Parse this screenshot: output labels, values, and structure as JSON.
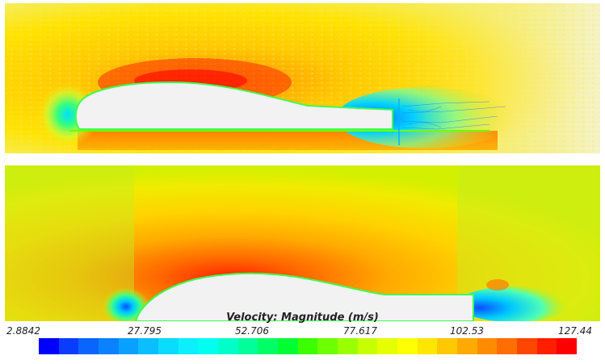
{
  "legend": {
    "title": "Velocity: Magnitude (m/s)",
    "ticks": [
      "2.8842",
      "27.795",
      "52.706",
      "77.617",
      "102.53",
      "127.44"
    ],
    "colors": [
      "#0000ff",
      "#0a3cff",
      "#0a64ff",
      "#0a82ff",
      "#0aa0ff",
      "#0abeff",
      "#0adcff",
      "#0af0ff",
      "#00fff0",
      "#00ffc8",
      "#00ff9a",
      "#00ff64",
      "#00ff32",
      "#3cff00",
      "#6eff00",
      "#9aff00",
      "#c8ff00",
      "#e6ff00",
      "#ffff00",
      "#ffe600",
      "#ffc800",
      "#ffaa00",
      "#ff8c00",
      "#ff6e00",
      "#ff4600",
      "#ff1e00",
      "#ff0000"
    ]
  }
}
